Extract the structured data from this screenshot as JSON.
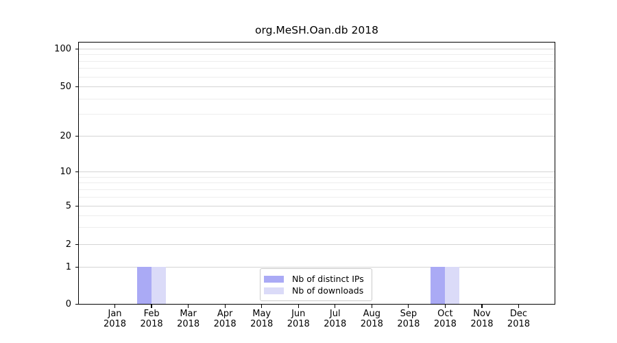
{
  "title": "org.MeSH.Oan.db 2018",
  "chart_data": {
    "type": "bar",
    "title": "org.MeSH.Oan.db 2018",
    "categories": [
      "Jan",
      "Feb",
      "Mar",
      "Apr",
      "May",
      "Jun",
      "Jul",
      "Aug",
      "Sep",
      "Oct",
      "Nov",
      "Dec"
    ],
    "category_year": "2018",
    "series": [
      {
        "name": "Nb of distinct IPs",
        "color": "#aaaaf5",
        "values": [
          0,
          1,
          0,
          0,
          0,
          0,
          0,
          0,
          0,
          1,
          0,
          0
        ]
      },
      {
        "name": "Nb of downloads",
        "color": "#dbdbf8",
        "values": [
          0,
          1,
          0,
          0,
          0,
          0,
          0,
          0,
          0,
          1,
          0,
          0
        ]
      }
    ],
    "xlabel": "",
    "ylabel": "",
    "yscale": "log-like (symlog of count+1)",
    "y_major_ticks": [
      0,
      1,
      2,
      5,
      10,
      20,
      50,
      100
    ],
    "y_minor_ticks": [
      3,
      4,
      6,
      7,
      8,
      9,
      30,
      40,
      60,
      70,
      80,
      90
    ],
    "ylim": [
      0,
      110
    ],
    "grid": "horizontal only",
    "legend_position": "inside bottom-center"
  },
  "colors": {
    "background": "#ffffff",
    "axis": "#000000",
    "grid_major": "#d4d4d4",
    "grid_minor": "#ededed",
    "bar_distinct_ips": "#aaaaf5",
    "bar_downloads": "#dbdbf8",
    "legend_border": "#c9c9c9"
  }
}
